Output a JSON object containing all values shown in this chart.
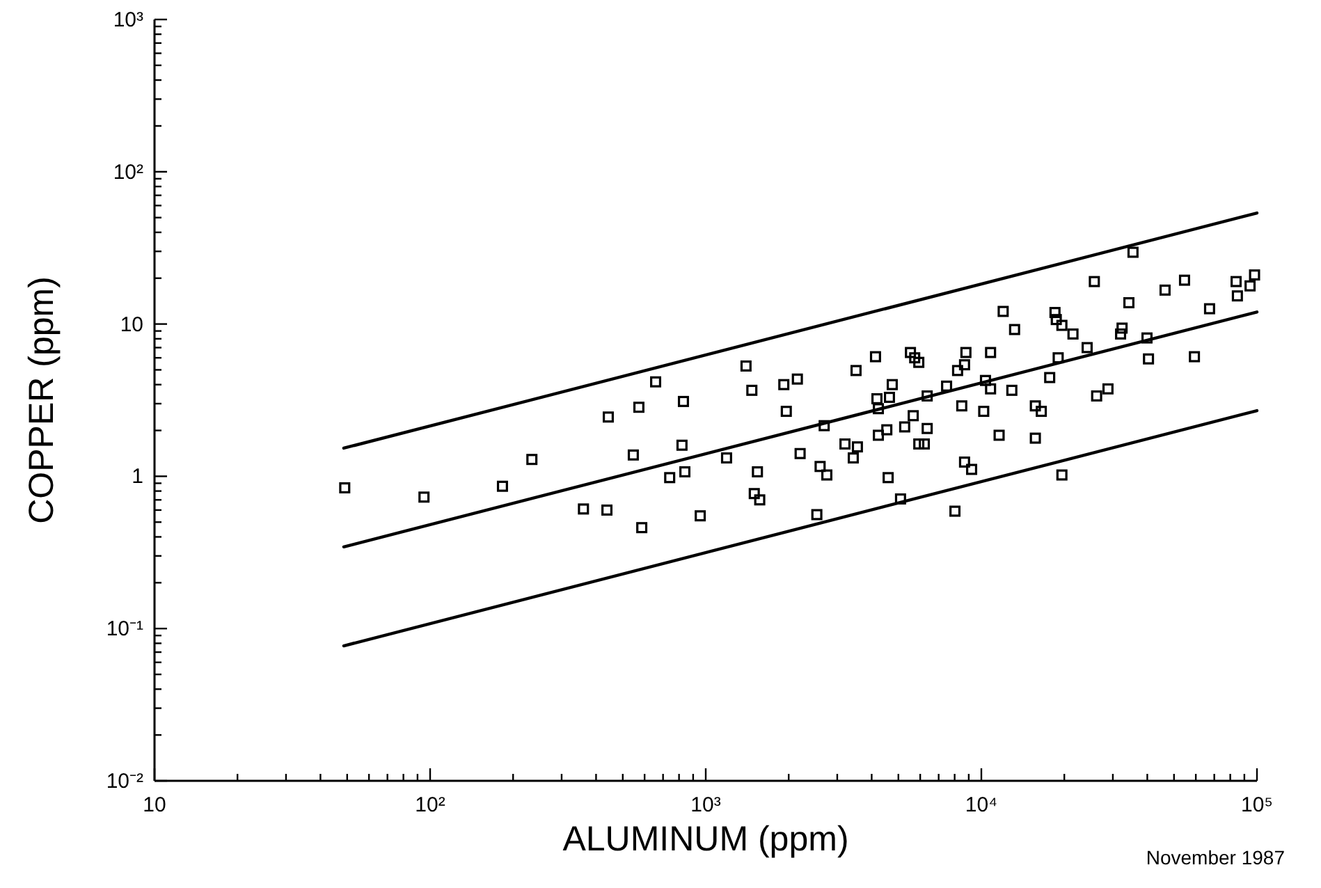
{
  "chart_data": {
    "type": "scatter",
    "xlabel": "ALUMINUM  (ppm)",
    "ylabel": "COPPER  (ppm)",
    "log": "xy",
    "xlim": [
      10,
      100000
    ],
    "ylim": [
      0.01,
      1000
    ],
    "xticks": [
      10,
      {
        "value": 20,
        "label": null
      },
      {
        "value": 30,
        "label": null
      },
      {
        "value": 40,
        "label": null
      },
      {
        "value": 50,
        "label": null
      },
      {
        "value": 60,
        "label": null
      },
      {
        "value": 70,
        "label": null
      },
      {
        "value": 80,
        "label": null
      },
      {
        "value": 90,
        "label": null
      },
      {
        "value": 100,
        "label": "10²"
      },
      {
        "value": 200,
        "label": null
      },
      {
        "value": 300,
        "label": null
      },
      {
        "value": 400,
        "label": null
      },
      {
        "value": 500,
        "label": null
      },
      {
        "value": 600,
        "label": null
      },
      {
        "value": 700,
        "label": null
      },
      {
        "value": 800,
        "label": null
      },
      {
        "value": 900,
        "label": null
      },
      {
        "value": 1000,
        "label": "10³"
      },
      {
        "value": 2000,
        "label": null
      },
      {
        "value": 3000,
        "label": null
      },
      {
        "value": 4000,
        "label": null
      },
      {
        "value": 5000,
        "label": null
      },
      {
        "value": 6000,
        "label": null
      },
      {
        "value": 7000,
        "label": null
      },
      {
        "value": 8000,
        "label": null
      },
      {
        "value": 9000,
        "label": null
      },
      {
        "value": 10000,
        "label": "10⁴"
      },
      {
        "value": 20000,
        "label": null
      },
      {
        "value": 30000,
        "label": null
      },
      {
        "value": 40000,
        "label": null
      },
      {
        "value": 50000,
        "label": null
      },
      {
        "value": 60000,
        "label": null
      },
      {
        "value": 70000,
        "label": null
      },
      {
        "value": 80000,
        "label": null
      },
      {
        "value": 90000,
        "label": null
      },
      {
        "value": 100000,
        "label": "10⁵"
      }
    ],
    "yticks": [
      {
        "value": 0.01,
        "label": "10⁻²"
      },
      {
        "value": 0.02,
        "label": null
      },
      {
        "value": 0.03,
        "label": null
      },
      {
        "value": 0.04,
        "label": null
      },
      {
        "value": 0.05,
        "label": null
      },
      {
        "value": 0.06,
        "label": null
      },
      {
        "value": 0.07,
        "label": null
      },
      {
        "value": 0.08,
        "label": null
      },
      {
        "value": 0.09,
        "label": null
      },
      {
        "value": 0.1,
        "label": "10⁻¹"
      },
      {
        "value": 0.2,
        "label": null
      },
      {
        "value": 0.3,
        "label": null
      },
      {
        "value": 0.4,
        "label": null
      },
      {
        "value": 0.5,
        "label": null
      },
      {
        "value": 0.6,
        "label": null
      },
      {
        "value": 0.7,
        "label": null
      },
      {
        "value": 0.8,
        "label": null
      },
      {
        "value": 0.9,
        "label": null
      },
      1,
      {
        "value": 2,
        "label": null
      },
      {
        "value": 3,
        "label": null
      },
      {
        "value": 4,
        "label": null
      },
      {
        "value": 5,
        "label": null
      },
      {
        "value": 6,
        "label": null
      },
      {
        "value": 7,
        "label": null
      },
      {
        "value": 8,
        "label": null
      },
      {
        "value": 9,
        "label": null
      },
      10,
      {
        "value": 20,
        "label": null
      },
      {
        "value": 30,
        "label": null
      },
      {
        "value": 40,
        "label": null
      },
      {
        "value": 50,
        "label": null
      },
      {
        "value": 60,
        "label": null
      },
      {
        "value": 70,
        "label": null
      },
      {
        "value": 80,
        "label": null
      },
      {
        "value": 90,
        "label": null
      },
      {
        "value": 100,
        "label": "10²"
      },
      {
        "value": 200,
        "label": null
      },
      {
        "value": 300,
        "label": null
      },
      {
        "value": 400,
        "label": null
      },
      {
        "value": 500,
        "label": null
      },
      {
        "value": 600,
        "label": null
      },
      {
        "value": 700,
        "label": null
      },
      {
        "value": 800,
        "label": null
      },
      {
        "value": 900,
        "label": null
      },
      {
        "value": 1000,
        "label": "10³"
      }
    ],
    "annotations": [
      "November 1987"
    ],
    "series": [
      {
        "type": "line",
        "marker": "none",
        "color": "#000000",
        "x": [
          48.6,
          100000
        ],
        "values": [
          1.53,
          53.6
        ]
      },
      {
        "type": "line",
        "marker": "none",
        "color": "#000000",
        "x": [
          48.6,
          100000
        ],
        "values": [
          0.344,
          12.0
        ]
      },
      {
        "type": "line",
        "marker": "none",
        "color": "#000000",
        "x": [
          48.6,
          100000
        ],
        "values": [
          0.077,
          2.7
        ]
      },
      {
        "marker": "square",
        "color": "#000000",
        "x": [
          49,
          95,
          183,
          234,
          360,
          438,
          443,
          572,
          658,
          546,
          586,
          830,
          820,
          740,
          840,
          955,
          1190,
          1400,
          1470,
          1540,
          1500,
          1570,
          1920,
          2150,
          1960,
          2200,
          2690,
          2600,
          2750,
          2530,
          3200,
          3550,
          3430,
          3510,
          4130,
          4180,
          4640,
          4750,
          4230,
          4230,
          4540,
          4590,
          5090,
          5270,
          5660,
          5530,
          5730,
          5930,
          6360,
          6360,
          5930,
          6210,
          7480,
          8200,
          8690,
          8790,
          8490,
          8690,
          9220,
          8020,
          10350,
          10800,
          10800,
          10200,
          11600,
          12000,
          13200,
          12900,
          15700,
          16500,
          15700,
          17700,
          18500,
          18700,
          19600,
          21500,
          19000,
          19600,
          24200,
          26200,
          28800,
          25700,
          32400,
          32000,
          34300,
          35500,
          40400,
          46400,
          54600,
          59300,
          67300,
          84000,
          84900,
          94400,
          98000,
          39900
        ],
        "values": [
          0.84,
          0.73,
          0.86,
          1.29,
          0.61,
          0.6,
          2.45,
          2.84,
          4.17,
          1.38,
          0.46,
          3.1,
          1.6,
          0.98,
          1.07,
          0.55,
          1.32,
          5.3,
          3.67,
          1.07,
          0.77,
          0.7,
          4.0,
          4.35,
          2.67,
          1.41,
          2.15,
          1.16,
          1.02,
          0.56,
          1.63,
          1.56,
          1.32,
          4.95,
          6.1,
          3.23,
          3.3,
          4.0,
          2.78,
          1.86,
          2.02,
          0.98,
          0.71,
          2.11,
          2.5,
          6.5,
          6.0,
          5.6,
          3.37,
          2.06,
          1.63,
          1.63,
          3.91,
          4.95,
          5.4,
          6.5,
          2.9,
          1.24,
          1.11,
          0.59,
          4.26,
          6.5,
          3.75,
          2.67,
          1.86,
          12.1,
          9.2,
          3.67,
          2.9,
          2.67,
          1.78,
          4.45,
          11.9,
          10.7,
          9.8,
          8.6,
          6.0,
          1.02,
          7.0,
          3.37,
          3.75,
          19.0,
          9.4,
          8.6,
          13.8,
          29.6,
          5.9,
          16.7,
          19.4,
          6.1,
          12.6,
          19.0,
          15.3,
          17.8,
          21,
          8.1
        ]
      }
    ]
  }
}
